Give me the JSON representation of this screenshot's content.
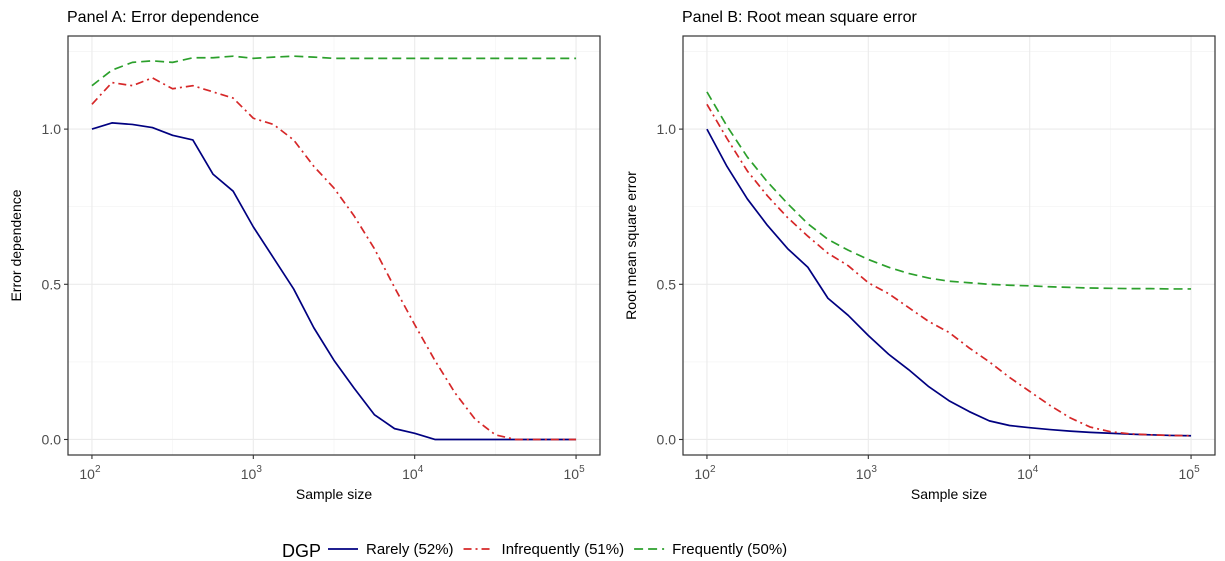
{
  "legend": {
    "title": "DGP",
    "position": "bottom"
  },
  "chart_data": [
    {
      "type": "line",
      "title": "Panel A: Error dependence",
      "xlabel": "Sample size",
      "ylabel": "Error dependence",
      "x_scale": "log10",
      "xlim": [
        100,
        100000
      ],
      "ylim": [
        -0.05,
        1.3
      ],
      "x_ticks": [
        {
          "value": 100,
          "label": "10",
          "exp": "2"
        },
        {
          "value": 1000,
          "label": "10",
          "exp": "3"
        },
        {
          "value": 10000,
          "label": "10",
          "exp": "4"
        },
        {
          "value": 100000,
          "label": "10",
          "exp": "5"
        }
      ],
      "y_ticks": [
        {
          "value": 0,
          "label": "0.0"
        },
        {
          "value": 0.5,
          "label": "0.5"
        },
        {
          "value": 1,
          "label": "1.0"
        }
      ],
      "grid": true,
      "series": [
        {
          "name": "Rarely (52%)",
          "color": "#000080",
          "dash": "solid",
          "x": [
            100,
            133,
            178,
            237,
            316,
            422,
            562,
            750,
            1000,
            1334,
            1778,
            2371,
            3162,
            4217,
            5623,
            7499,
            10000,
            13335,
            17783,
            23714,
            31623,
            42170,
            56234,
            74989,
            100000
          ],
          "y": [
            1.0,
            1.02,
            1.015,
            1.005,
            0.98,
            0.965,
            0.855,
            0.8,
            0.685,
            0.585,
            0.485,
            0.36,
            0.255,
            0.165,
            0.08,
            0.035,
            0.02,
            0.0,
            0.0,
            0.0,
            0.0,
            0.0,
            0.0,
            0.0,
            0.0
          ]
        },
        {
          "name": "Infrequently (51%)",
          "color": "#d62728",
          "dash": "dashdot",
          "x": [
            100,
            133,
            178,
            237,
            316,
            422,
            562,
            750,
            1000,
            1334,
            1778,
            2371,
            3162,
            4217,
            5623,
            7499,
            10000,
            13335,
            17783,
            23714,
            31623,
            42170,
            56234,
            74989,
            100000
          ],
          "y": [
            1.08,
            1.15,
            1.14,
            1.165,
            1.13,
            1.14,
            1.12,
            1.1,
            1.035,
            1.015,
            0.965,
            0.88,
            0.81,
            0.72,
            0.615,
            0.49,
            0.37,
            0.255,
            0.15,
            0.065,
            0.015,
            0.0,
            0.0,
            0.0,
            0.0
          ]
        },
        {
          "name": "Frequently (50%)",
          "color": "#2ca02c",
          "dash": "dashed",
          "x": [
            100,
            133,
            178,
            237,
            316,
            422,
            562,
            750,
            1000,
            1334,
            1778,
            2371,
            3162,
            4217,
            5623,
            7499,
            10000,
            13335,
            17783,
            23714,
            31623,
            42170,
            56234,
            74989,
            100000
          ],
          "y": [
            1.14,
            1.19,
            1.215,
            1.22,
            1.215,
            1.23,
            1.23,
            1.235,
            1.228,
            1.232,
            1.235,
            1.232,
            1.228,
            1.228,
            1.228,
            1.228,
            1.228,
            1.228,
            1.228,
            1.228,
            1.228,
            1.228,
            1.228,
            1.228,
            1.228
          ]
        }
      ]
    },
    {
      "type": "line",
      "title": "Panel B: Root mean square error",
      "xlabel": "Sample size",
      "ylabel": "Root mean square error",
      "x_scale": "log10",
      "xlim": [
        100,
        100000
      ],
      "ylim": [
        -0.05,
        1.3
      ],
      "x_ticks": [
        {
          "value": 100,
          "label": "10",
          "exp": "2"
        },
        {
          "value": 1000,
          "label": "10",
          "exp": "3"
        },
        {
          "value": 10000,
          "label": "10",
          "exp": "4"
        },
        {
          "value": 100000,
          "label": "10",
          "exp": "5"
        }
      ],
      "y_ticks": [
        {
          "value": 0,
          "label": "0.0"
        },
        {
          "value": 0.5,
          "label": "0.5"
        },
        {
          "value": 1,
          "label": "1.0"
        }
      ],
      "grid": true,
      "series": [
        {
          "name": "Rarely (52%)",
          "color": "#000080",
          "dash": "solid",
          "x": [
            100,
            133,
            178,
            237,
            316,
            422,
            562,
            750,
            1000,
            1334,
            1778,
            2371,
            3162,
            4217,
            5623,
            7499,
            10000,
            13335,
            17783,
            23714,
            31623,
            42170,
            56234,
            74989,
            100000
          ],
          "y": [
            1.0,
            0.88,
            0.775,
            0.69,
            0.615,
            0.555,
            0.455,
            0.4,
            0.335,
            0.275,
            0.225,
            0.17,
            0.125,
            0.09,
            0.06,
            0.045,
            0.038,
            0.032,
            0.027,
            0.023,
            0.02,
            0.017,
            0.015,
            0.013,
            0.012
          ]
        },
        {
          "name": "Infrequently (51%)",
          "color": "#d62728",
          "dash": "dashdot",
          "x": [
            100,
            133,
            178,
            237,
            316,
            422,
            562,
            750,
            1000,
            1334,
            1778,
            2371,
            3162,
            4217,
            5623,
            7499,
            10000,
            13335,
            17783,
            23714,
            31623,
            42170,
            56234,
            74989,
            100000
          ],
          "y": [
            1.08,
            0.97,
            0.865,
            0.785,
            0.715,
            0.655,
            0.6,
            0.56,
            0.505,
            0.47,
            0.425,
            0.38,
            0.345,
            0.295,
            0.25,
            0.2,
            0.155,
            0.11,
            0.07,
            0.04,
            0.025,
            0.018,
            0.015,
            0.013,
            0.012
          ]
        },
        {
          "name": "Frequently (50%)",
          "color": "#2ca02c",
          "dash": "dashed",
          "x": [
            100,
            133,
            178,
            237,
            316,
            422,
            562,
            750,
            1000,
            1334,
            1778,
            2371,
            3162,
            4217,
            5623,
            7499,
            10000,
            13335,
            17783,
            23714,
            31623,
            42170,
            56234,
            74989,
            100000
          ],
          "y": [
            1.12,
            1.01,
            0.91,
            0.83,
            0.76,
            0.695,
            0.645,
            0.61,
            0.58,
            0.555,
            0.535,
            0.52,
            0.51,
            0.505,
            0.5,
            0.497,
            0.495,
            0.492,
            0.49,
            0.488,
            0.487,
            0.486,
            0.486,
            0.485,
            0.485
          ]
        }
      ]
    }
  ]
}
